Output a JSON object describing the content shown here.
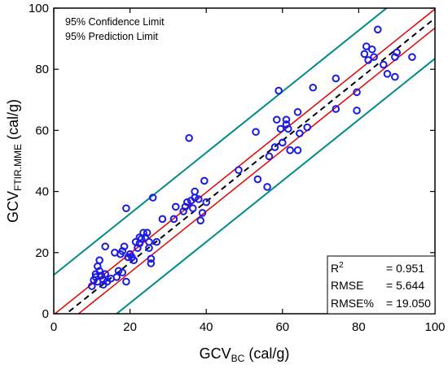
{
  "chart_data": {
    "type": "scatter",
    "xlabel_main": "GCV",
    "xlabel_sub": "BC",
    "xlabel_unit": " (cal/g)",
    "ylabel_main": "GCV",
    "ylabel_sub": "FTIR.MME",
    "ylabel_unit": " (cal/g)",
    "xlim": [
      0,
      100
    ],
    "ylim": [
      0,
      100
    ],
    "xticks": [
      0,
      20,
      40,
      60,
      80,
      100
    ],
    "yticks": [
      0,
      20,
      40,
      60,
      80,
      100
    ],
    "annotations": [
      "95% Confidence Limit",
      "95% Prediction Limit"
    ],
    "stats": [
      {
        "label": "R",
        "sup": "2",
        "value": "= 0.951"
      },
      {
        "label": "RMSE",
        "sup": "",
        "value": "= 5.644"
      },
      {
        "label": "RMSE%",
        "sup": "",
        "value": "= 19.050"
      }
    ],
    "colors": {
      "points": "#1a1ae6",
      "fit": "#000000",
      "confidence": "#e60000",
      "prediction": "#008b8b"
    },
    "fit_line": {
      "slope": 1.0,
      "intercept": -3.3
    },
    "confidence_band": {
      "lower_intercept": -6.5,
      "upper_intercept": -0.3
    },
    "prediction_band": {
      "lower_intercept": -16.5,
      "upper_intercept": 12.7
    },
    "points": [
      [
        10,
        9
      ],
      [
        10.5,
        11
      ],
      [
        11,
        12
      ],
      [
        11,
        13
      ],
      [
        11.5,
        10.5
      ],
      [
        11.5,
        15.5
      ],
      [
        12,
        17.5
      ],
      [
        12,
        14
      ],
      [
        12.5,
        12.5
      ],
      [
        13,
        11
      ],
      [
        13,
        9.5
      ],
      [
        13.5,
        22
      ],
      [
        13.5,
        13
      ],
      [
        14,
        10.5
      ],
      [
        15,
        11.5
      ],
      [
        16,
        20
      ],
      [
        16.5,
        12
      ],
      [
        17,
        14
      ],
      [
        17.5,
        19.5
      ],
      [
        18,
        13.5
      ],
      [
        18,
        20.5
      ],
      [
        18.5,
        22
      ],
      [
        19,
        10.5
      ],
      [
        19,
        34.5
      ],
      [
        19.5,
        18.5
      ],
      [
        20,
        19.5
      ],
      [
        20.5,
        18.5
      ],
      [
        21,
        17.5
      ],
      [
        21.5,
        23.5
      ],
      [
        22,
        21.5
      ],
      [
        22.5,
        25
      ],
      [
        22.5,
        23
      ],
      [
        23,
        24.5
      ],
      [
        23.5,
        26.5
      ],
      [
        24,
        25
      ],
      [
        24.5,
        26.5
      ],
      [
        25,
        23.5
      ],
      [
        25,
        21.5
      ],
      [
        25.5,
        16.5
      ],
      [
        25.5,
        18
      ],
      [
        26,
        38
      ],
      [
        27,
        23.5
      ],
      [
        28.5,
        31
      ],
      [
        31.5,
        31
      ],
      [
        32,
        35
      ],
      [
        34,
        33.5
      ],
      [
        34.5,
        35
      ],
      [
        35,
        36.5
      ],
      [
        35.5,
        57.5
      ],
      [
        36,
        37
      ],
      [
        36.5,
        34.5
      ],
      [
        37,
        38
      ],
      [
        37,
        40
      ],
      [
        38,
        37.5
      ],
      [
        38.5,
        30.5
      ],
      [
        39,
        33
      ],
      [
        39.5,
        43.5
      ],
      [
        40,
        36.5
      ],
      [
        48.5,
        47
      ],
      [
        53,
        59.5
      ],
      [
        53.5,
        44
      ],
      [
        56,
        41.5
      ],
      [
        56.5,
        51.5
      ],
      [
        58,
        54.5
      ],
      [
        58.5,
        63.5
      ],
      [
        59,
        73
      ],
      [
        59.5,
        60.5
      ],
      [
        60,
        56
      ],
      [
        61,
        62
      ],
      [
        61,
        63.5
      ],
      [
        61.5,
        60.5
      ],
      [
        62,
        53.5
      ],
      [
        64,
        53.5
      ],
      [
        64,
        66
      ],
      [
        64.5,
        59
      ],
      [
        66.5,
        61
      ],
      [
        68,
        74
      ],
      [
        74,
        77
      ],
      [
        74,
        67
      ],
      [
        79.5,
        72.5
      ],
      [
        79.5,
        66.5
      ],
      [
        81.5,
        85
      ],
      [
        82,
        87.5
      ],
      [
        82.5,
        83
      ],
      [
        83.5,
        86.5
      ],
      [
        84,
        84
      ],
      [
        85,
        93
      ],
      [
        86.5,
        81.5
      ],
      [
        87.5,
        78.5
      ],
      [
        89.5,
        77.5
      ],
      [
        89.5,
        84
      ],
      [
        90,
        85.5
      ],
      [
        94,
        84
      ]
    ]
  }
}
